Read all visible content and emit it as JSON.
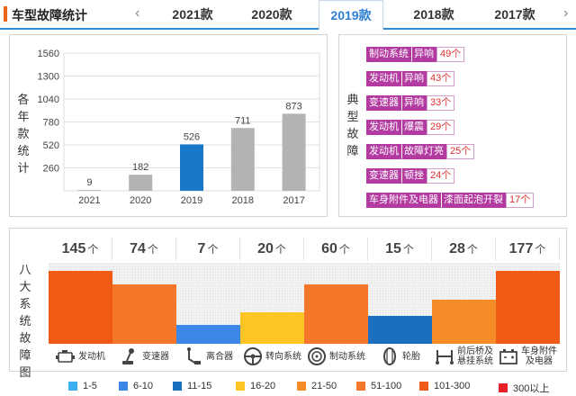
{
  "header": {
    "title": "车型故障统计",
    "prev": "‹",
    "next": "›",
    "tabs": [
      "2021款",
      "2020款",
      "2019款",
      "2018款",
      "2017款"
    ],
    "active_tab": "2019款"
  },
  "chart_panel": {
    "ylabel": "各年款统计",
    "chart_data": {
      "type": "bar",
      "categories": [
        "2021",
        "2020",
        "2019",
        "2018",
        "2017"
      ],
      "values": [
        9,
        182,
        526,
        711,
        873
      ],
      "highlight": "2019",
      "yticks": [
        260,
        520,
        780,
        1040,
        1300,
        1560
      ],
      "ylim": [
        0,
        1560
      ],
      "colors": {
        "bar": "#b3b3b3",
        "highlight": "#1a78c8"
      },
      "grid": true
    }
  },
  "issues_panel": {
    "label": "典型故障",
    "items": [
      {
        "category": "制动系统",
        "symptom": "异响",
        "count": "49个"
      },
      {
        "category": "发动机",
        "symptom": "异响",
        "count": "43个"
      },
      {
        "category": "变速器",
        "symptom": "异响",
        "count": "33个"
      },
      {
        "category": "发动机",
        "symptom": "爆震",
        "count": "29个"
      },
      {
        "category": "发动机",
        "symptom": "故障灯亮",
        "count": "25个"
      },
      {
        "category": "变速器",
        "symptom": "顿挫",
        "count": "24个"
      },
      {
        "category": "车身附件及电器",
        "symptom": "漆面起泡开裂",
        "count": "17个"
      }
    ]
  },
  "systems_panel": {
    "label": "八大系统故障图",
    "unit": "个",
    "systems": [
      {
        "name": "发动机",
        "count": 145,
        "level": 0.9,
        "color": "#f05a14",
        "icon": "engine-icon"
      },
      {
        "name": "变速器",
        "count": 74,
        "level": 0.73,
        "color": "#f5782a",
        "icon": "gear-shift-icon"
      },
      {
        "name": "离合器",
        "count": 7,
        "level": 0.23,
        "color": "#3a87e8",
        "icon": "clutch-pedal-icon"
      },
      {
        "name": "转向系统",
        "count": 20,
        "level": 0.39,
        "color": "#fcc424",
        "icon": "steering-wheel-icon"
      },
      {
        "name": "制动系统",
        "count": 60,
        "level": 0.73,
        "color": "#f5782a",
        "icon": "brake-disc-icon"
      },
      {
        "name": "轮胎",
        "count": 15,
        "level": 0.35,
        "color": "#1a6fc0",
        "icon": "tire-icon"
      },
      {
        "name": "前后桥及悬挂系统",
        "name_lines": [
          "前后桥及",
          "悬挂系统"
        ],
        "count": 28,
        "level": 0.55,
        "color": "#f58c28",
        "icon": "suspension-icon"
      },
      {
        "name": "车身附件及电器",
        "name_lines": [
          "车身附件",
          "及电器"
        ],
        "count": 177,
        "level": 0.9,
        "color": "#f05a14",
        "icon": "battery-icon"
      }
    ]
  },
  "legend": [
    {
      "label": "1-5",
      "color": "#3ab0f0"
    },
    {
      "label": "6-10",
      "color": "#3a87e8"
    },
    {
      "label": "11-15",
      "color": "#1a6fc0"
    },
    {
      "label": "16-20",
      "color": "#fcc424"
    },
    {
      "label": "21-50",
      "color": "#f58c28"
    },
    {
      "label": "51-100",
      "color": "#f5782a"
    },
    {
      "label": "101-300",
      "color": "#f05a14"
    },
    {
      "label": "300以上",
      "color": "#e8202a"
    }
  ]
}
